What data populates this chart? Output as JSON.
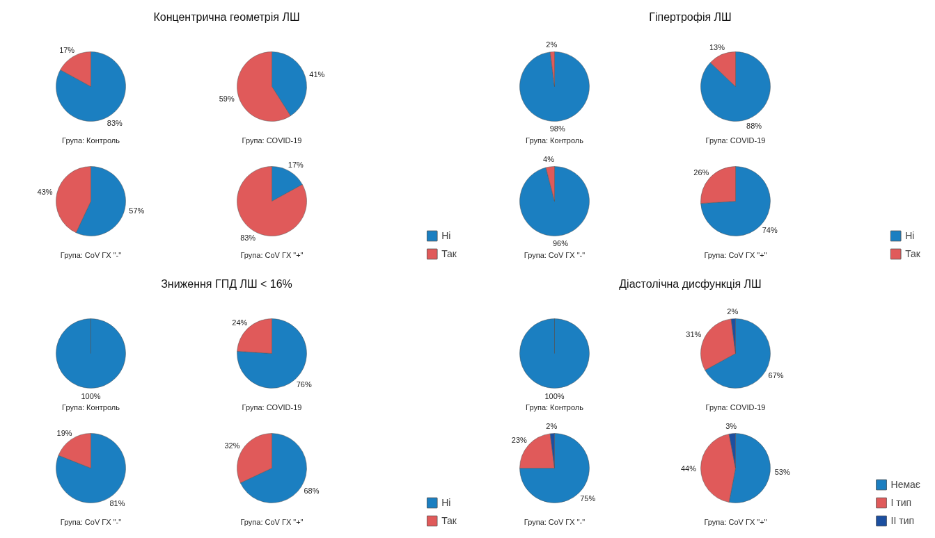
{
  "chart_data": [
    {
      "type": "pie",
      "title": "Концентрична геометрія ЛШ",
      "categories": [
        "Ні",
        "Так"
      ],
      "colors": [
        "#1b7fc1",
        "#e05a5a"
      ],
      "legend": "bottom right",
      "series": [
        {
          "name": "Група: Контроль",
          "values": [
            83,
            17
          ],
          "value_labels": [
            "83%",
            "17%"
          ]
        },
        {
          "name": "Група: COVID-19",
          "values": [
            41,
            59
          ],
          "value_labels": [
            "41%",
            "59%"
          ]
        },
        {
          "name": "Група: CoV ГХ \"-\"",
          "values": [
            57,
            43
          ],
          "value_labels": [
            "57%",
            "43%"
          ]
        },
        {
          "name": "Група: CoV ГХ \"+\"",
          "values": [
            17,
            83
          ],
          "value_labels": [
            "17%",
            "83%"
          ]
        }
      ]
    },
    {
      "type": "pie",
      "title": "Гіпертрофія ЛШ",
      "categories": [
        "Ні",
        "Так"
      ],
      "colors": [
        "#1b7fc1",
        "#e05a5a"
      ],
      "legend": "bottom right",
      "series": [
        {
          "name": "Група: Контроль",
          "values": [
            98,
            2
          ],
          "value_labels": [
            "98%",
            "2%"
          ]
        },
        {
          "name": "Група: COVID-19",
          "values": [
            88,
            13
          ],
          "value_labels": [
            "88%",
            "13%"
          ]
        },
        {
          "name": "Група: CoV ГХ \"-\"",
          "values": [
            96,
            4
          ],
          "value_labels": [
            "96%",
            "4%"
          ]
        },
        {
          "name": "Група: CoV ГХ \"+\"",
          "values": [
            74,
            26
          ],
          "value_labels": [
            "74%",
            "26%"
          ]
        }
      ]
    },
    {
      "type": "pie",
      "title": "Зниження ГПД ЛШ < 16%",
      "categories": [
        "Ні",
        "Так"
      ],
      "colors": [
        "#1b7fc1",
        "#e05a5a"
      ],
      "legend": "bottom right",
      "series": [
        {
          "name": "Група: Контроль",
          "values": [
            100,
            null
          ],
          "value_labels": [
            "100%",
            null
          ]
        },
        {
          "name": "Група: COVID-19",
          "values": [
            76,
            24
          ],
          "value_labels": [
            "76%",
            "24%"
          ]
        },
        {
          "name": "Група: CoV ГХ \"-\"",
          "values": [
            81,
            19
          ],
          "value_labels": [
            "81%",
            "19%"
          ]
        },
        {
          "name": "Група: CoV ГХ \"+\"",
          "values": [
            68,
            32
          ],
          "value_labels": [
            "68%",
            "32%"
          ]
        }
      ]
    },
    {
      "type": "pie",
      "title": "Діастолічна дисфункція ЛШ",
      "categories": [
        "Немає",
        "I тип",
        "II тип"
      ],
      "colors": [
        "#1b7fc1",
        "#e05a5a",
        "#1c4fa0"
      ],
      "legend": "bottom right",
      "series": [
        {
          "name": "Група: Контроль",
          "values": [
            100,
            null,
            null
          ],
          "value_labels": [
            "100%",
            null,
            null
          ]
        },
        {
          "name": "Група: COVID-19",
          "values": [
            67,
            31,
            2
          ],
          "value_labels": [
            "67%",
            "31%",
            "2%"
          ]
        },
        {
          "name": "Група: CoV ГХ \"-\"",
          "values": [
            75,
            23,
            2
          ],
          "value_labels": [
            "75%",
            "23%",
            "2%"
          ]
        },
        {
          "name": "Група: CoV ГХ \"+\"",
          "values": [
            53,
            44,
            3
          ],
          "value_labels": [
            "53%",
            "44%",
            "3%"
          ]
        }
      ]
    }
  ]
}
